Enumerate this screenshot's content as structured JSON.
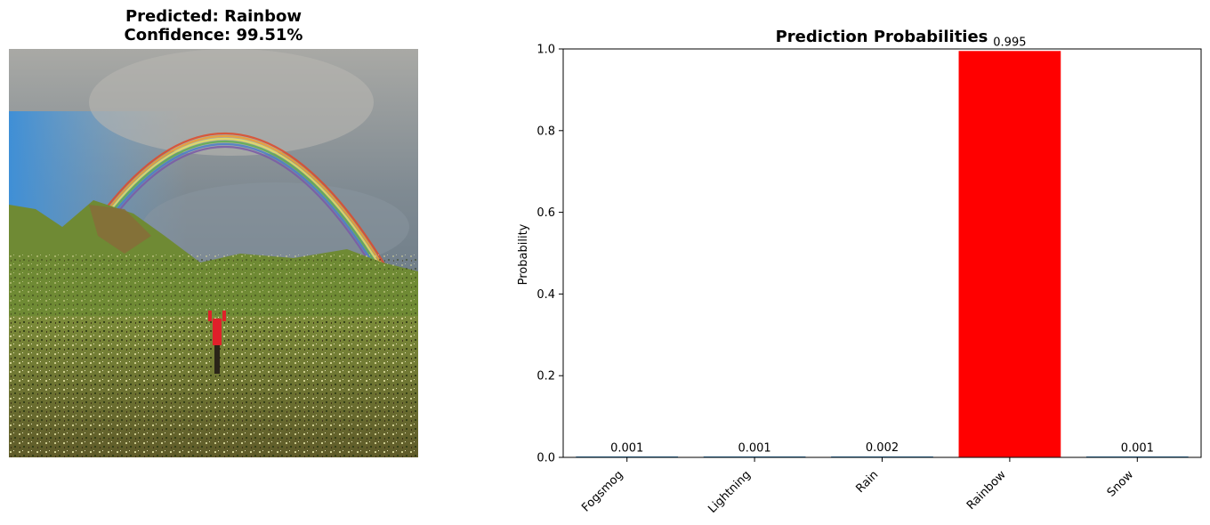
{
  "left_panel": {
    "title_line1": "Predicted: Rainbow",
    "title_line2": "Confidence: 99.51%"
  },
  "chart_data": {
    "type": "bar",
    "title": "Prediction Probabilities",
    "xlabel": "",
    "ylabel": "Probability",
    "ylim": [
      0,
      1.0
    ],
    "yticks": [
      "0.0",
      "0.2",
      "0.4",
      "0.6",
      "0.8",
      "1.0"
    ],
    "categories": [
      "Fogsmog",
      "Lightning",
      "Rain",
      "Rainbow",
      "Snow"
    ],
    "values": [
      0.001,
      0.001,
      0.002,
      0.995,
      0.001
    ],
    "value_labels": [
      "0.001",
      "0.001",
      "0.002",
      "0.995",
      "0.001"
    ],
    "colors": [
      "#1f77b4",
      "#1f77b4",
      "#1f77b4",
      "#ff0000",
      "#1f77b4"
    ],
    "grid": false
  }
}
